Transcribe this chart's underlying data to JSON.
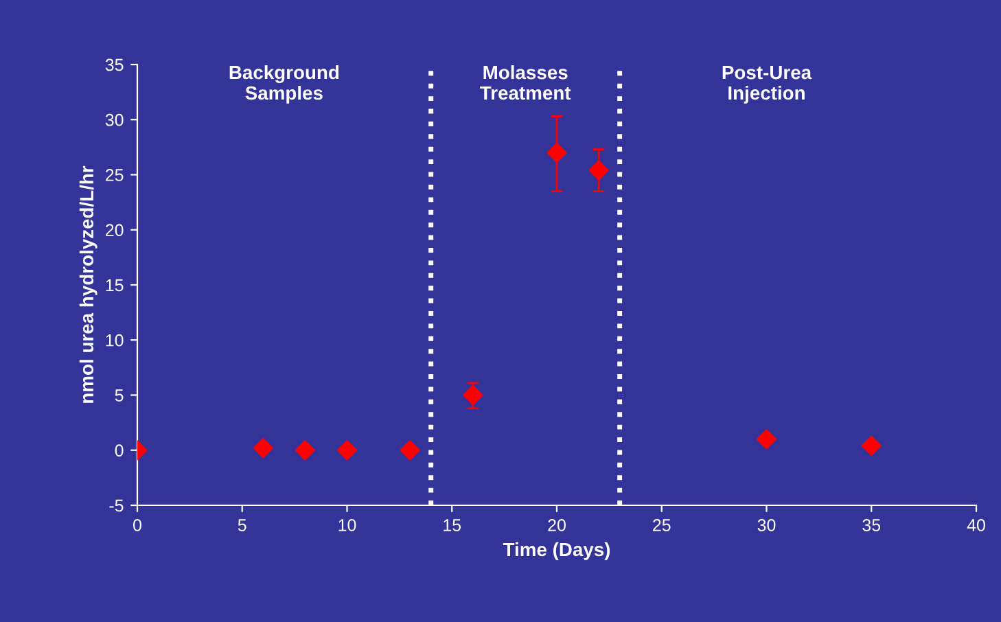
{
  "chart_data": {
    "type": "scatter",
    "xlabel": "Time (Days)",
    "ylabel": "nmol urea hydrolyzed/L/hr",
    "x": [
      0,
      6,
      8,
      10,
      13,
      16,
      20,
      22,
      30,
      35
    ],
    "series": [
      {
        "color": "#ff0000",
        "values": [
          0,
          0.2,
          0,
          0,
          0,
          5,
          27,
          25.4,
          1,
          0.4
        ],
        "errors": [
          null,
          null,
          null,
          null,
          null,
          [
            3.8,
            6.1
          ],
          [
            23.5,
            30.3
          ],
          [
            23.5,
            27.3
          ],
          null,
          null
        ]
      }
    ],
    "marker": "diamond",
    "xlim": [
      0,
      40
    ],
    "xticks": [
      0,
      5,
      10,
      15,
      20,
      25,
      30,
      35,
      40
    ],
    "ylim": [
      -5,
      35
    ],
    "yticks": [
      -5,
      0,
      5,
      10,
      15,
      20,
      25,
      30,
      35
    ],
    "grid": false,
    "legend": false,
    "ref_lines": [
      {
        "axis": "x",
        "value": 14,
        "color": "#ffffff",
        "line_style": "dotted"
      },
      {
        "axis": "x",
        "value": 23,
        "color": "#ffffff",
        "line_style": "dotted"
      }
    ],
    "annotations": [
      "Background\nSamples",
      "Molasses\nTreatment",
      "Post-Urea\nInjection"
    ]
  }
}
